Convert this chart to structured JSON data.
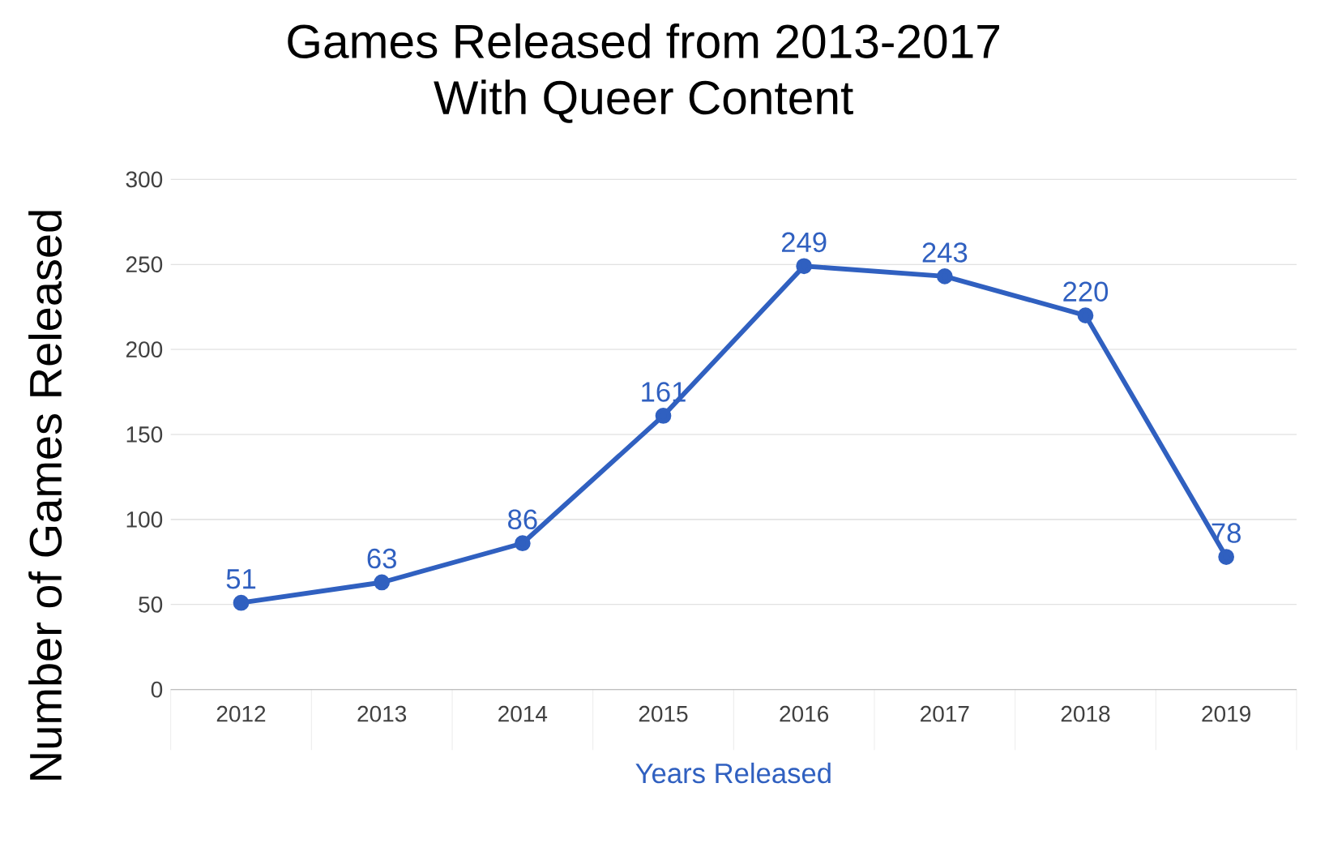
{
  "chart_data": {
    "type": "line",
    "title": "Games Released from 2013-2017\nWith Queer Content",
    "xlabel": "Years Released",
    "ylabel": "Number of Games Released",
    "categories": [
      "2012",
      "2013",
      "2014",
      "2015",
      "2016",
      "2017",
      "2018",
      "2019"
    ],
    "series": [
      {
        "color": "#3060c0",
        "values": [
          51,
          63,
          86,
          161,
          249,
          243,
          220,
          78
        ]
      }
    ],
    "ylim": [
      0,
      300
    ],
    "yticks": [
      0,
      50,
      100,
      150,
      200,
      250,
      300
    ],
    "grid": "y",
    "data_labels": true,
    "marker": "circle"
  }
}
